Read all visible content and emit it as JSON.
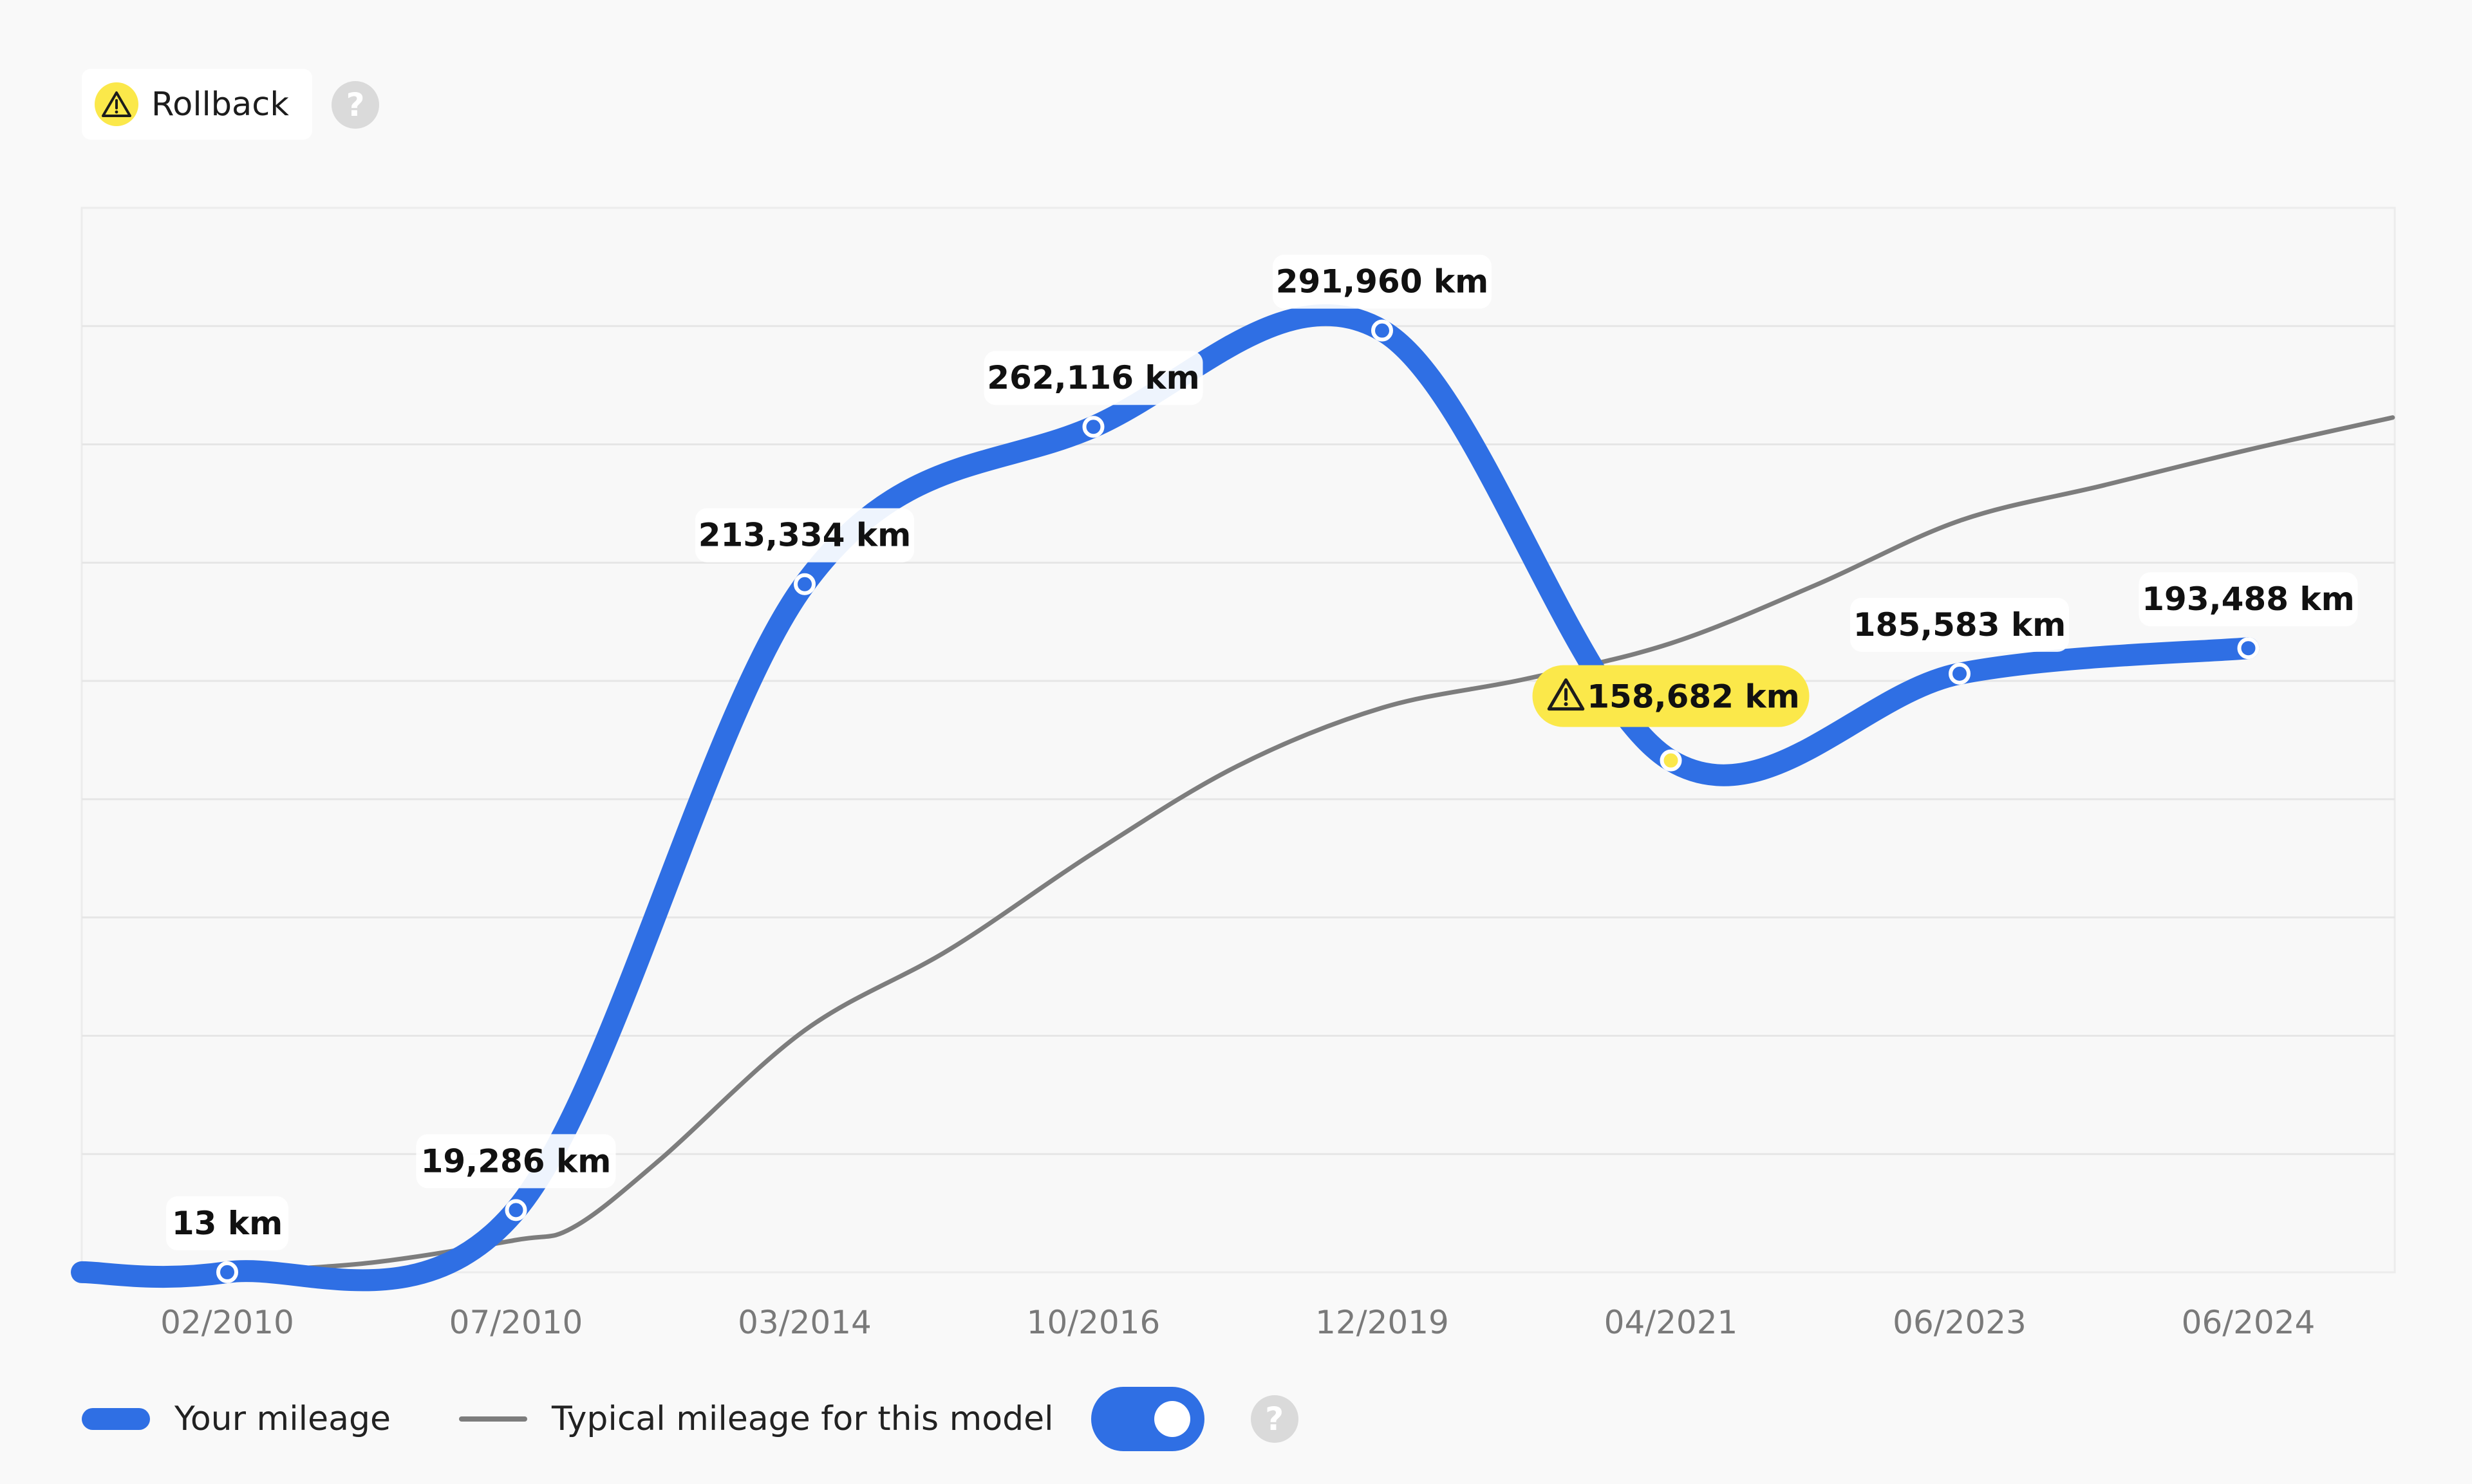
{
  "header": {
    "badge_label": "Rollback",
    "badge_icon": "warning-icon",
    "help_glyph": "?"
  },
  "chart_data": {
    "type": "line",
    "categories": [
      "02/2010",
      "07/2010",
      "03/2014",
      "10/2016",
      "12/2019",
      "04/2021",
      "06/2023",
      "06/2024"
    ],
    "ylim": [
      0,
      330000
    ],
    "grid": true,
    "series": [
      {
        "name": "Your mileage",
        "color": "#2f6fe4",
        "values": [
          13,
          19286,
          213334,
          262116,
          291960,
          158682,
          185583,
          193488
        ],
        "value_labels": [
          "13 km",
          "19,286 km",
          "213,334 km",
          "262,116 km",
          "291,960 km",
          "158,682 km",
          "185,583 km",
          "193,488 km"
        ],
        "flagged_index": 5,
        "flag_color": "#fbe84a"
      },
      {
        "name": "Typical mileage for this model",
        "color": "#7d7d7d",
        "points": [
          [
            0,
            0
          ],
          [
            0.5,
            3000
          ],
          [
            1.0,
            10000
          ],
          [
            1.2,
            14000
          ],
          [
            1.5,
            35000
          ],
          [
            2.0,
            75000
          ],
          [
            2.5,
            100000
          ],
          [
            3.0,
            130000
          ],
          [
            3.5,
            157000
          ],
          [
            4.0,
            175000
          ],
          [
            4.5,
            184000
          ],
          [
            5.0,
            195000
          ],
          [
            5.5,
            213000
          ],
          [
            6.0,
            233000
          ],
          [
            6.5,
            244000
          ],
          [
            7.0,
            255000
          ],
          [
            7.5,
            265000
          ]
        ]
      }
    ]
  },
  "legend": {
    "your_mileage": "Your mileage",
    "typical_mileage": "Typical mileage for this model",
    "toggle_on": true
  }
}
